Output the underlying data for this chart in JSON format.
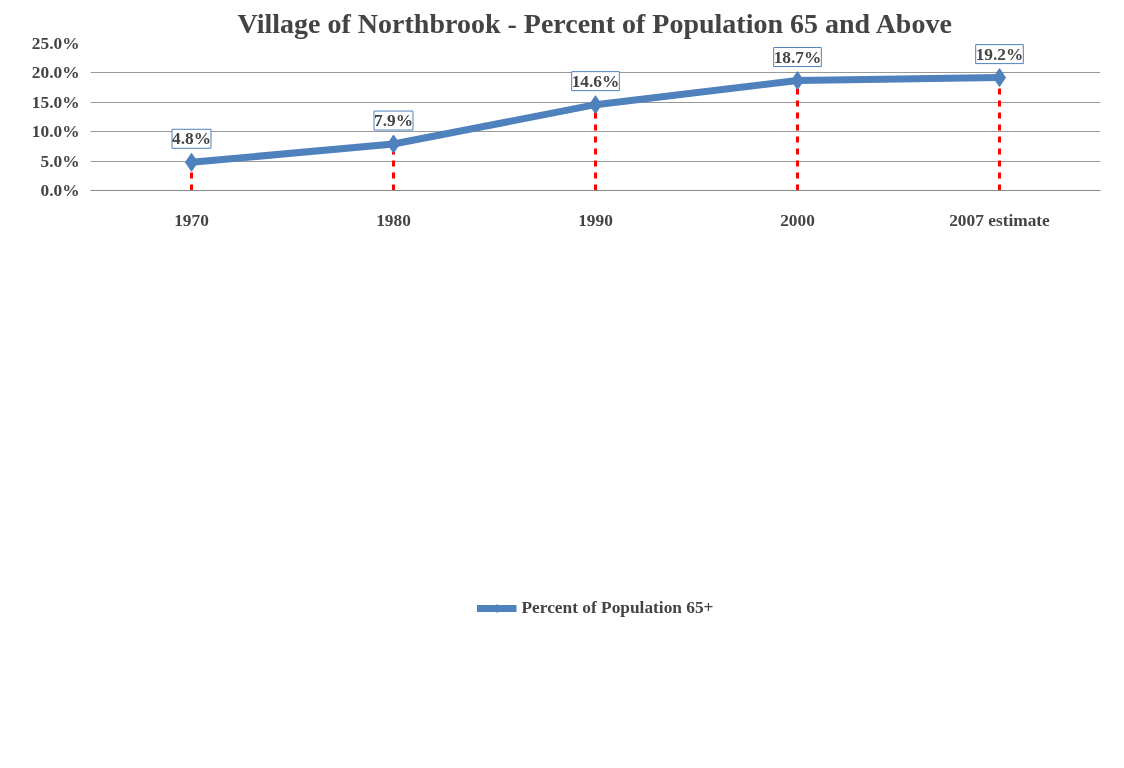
{
  "chart_data": {
    "type": "line",
    "title": "Village of Northbrook - Percent of Population 65 and Above",
    "categories": [
      "1970",
      "1980",
      "1990",
      "2000",
      "2007 estimate"
    ],
    "series": [
      {
        "name": "Percent of Population 65+",
        "color": "#4f81bd",
        "values": [
          4.8,
          7.9,
          14.6,
          18.7,
          19.2
        ],
        "value_labels": [
          "4.8%",
          "7.9%",
          "14.6%",
          "18.7%",
          "19.2%"
        ]
      }
    ],
    "ylim": [
      0,
      25
    ],
    "yticks": [
      {
        "value": 0,
        "label": "0.0%"
      },
      {
        "value": 5,
        "label": "5.0%"
      },
      {
        "value": 10,
        "label": "10.0%"
      },
      {
        "value": 15,
        "label": "15.0%"
      },
      {
        "value": 20,
        "label": "20.0%"
      },
      {
        "value": 25,
        "label": "25.0%"
      }
    ],
    "ref_lines": [
      {
        "axis": "x",
        "value": "1970",
        "color": "#ff0000",
        "line_style": "dashed"
      },
      {
        "axis": "x",
        "value": "1980",
        "color": "#ff0000",
        "line_style": "dashed"
      },
      {
        "axis": "x",
        "value": "1990",
        "color": "#ff0000",
        "line_style": "dashed"
      },
      {
        "axis": "x",
        "value": "2000",
        "color": "#ff0000",
        "line_style": "dashed"
      },
      {
        "axis": "x",
        "value": "2007 estimate",
        "color": "#ff0000",
        "line_style": "dashed"
      }
    ],
    "grid": "y",
    "legend": "bottom",
    "marker": "diamond",
    "line_style": "solid"
  }
}
